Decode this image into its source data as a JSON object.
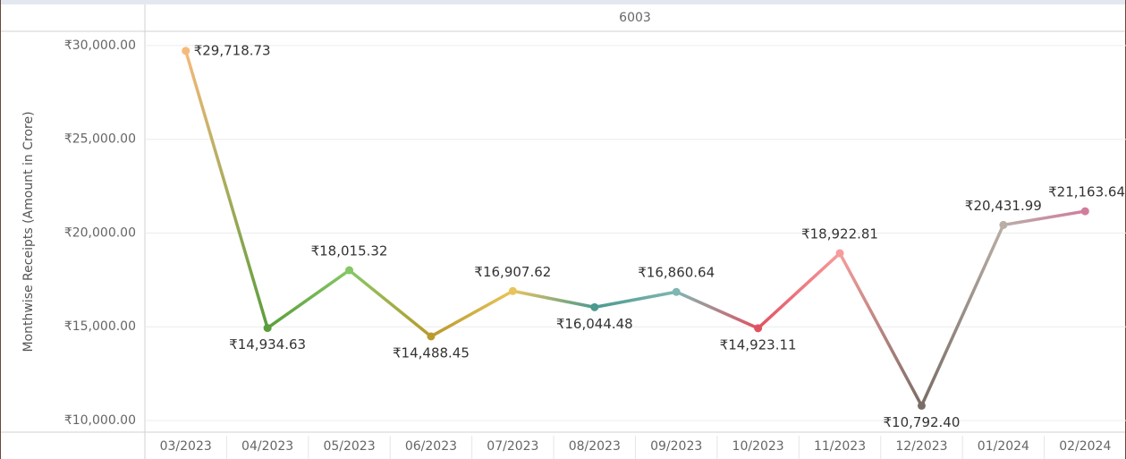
{
  "chart_data": {
    "type": "line",
    "panel_label": "6003",
    "y_axis_label": "Monthwise Receipts (Amount in Crore)",
    "categories": [
      "03/2023",
      "04/2023",
      "05/2023",
      "06/2023",
      "07/2023",
      "08/2023",
      "09/2023",
      "10/2023",
      "11/2023",
      "12/2023",
      "01/2024",
      "02/2024"
    ],
    "values": [
      29718.73,
      14934.63,
      18015.32,
      14488.45,
      16907.62,
      16044.48,
      16860.64,
      14923.11,
      18922.81,
      10792.4,
      20431.99,
      21163.64
    ],
    "value_labels": [
      "₹29,718.73",
      "₹14,934.63",
      "₹18,015.32",
      "₹14,488.45",
      "₹16,907.62",
      "₹16,044.48",
      "₹16,860.64",
      "₹14,923.11",
      "₹18,922.81",
      "₹10,792.40",
      "₹20,431.99",
      "₹21,163.64"
    ],
    "colors": [
      "#f6b97b",
      "#5a9e3c",
      "#86c765",
      "#b99a2d",
      "#e8c45c",
      "#4b9a8f",
      "#7fb7b1",
      "#e05262",
      "#f79c9c",
      "#7a6e66",
      "#b9aea7",
      "#d27c9c"
    ],
    "ylim": [
      9380,
      30760
    ],
    "yticks": [
      {
        "value": 10000,
        "label": "₹10,000.00"
      },
      {
        "value": 15000,
        "label": "₹15,000.00"
      },
      {
        "value": 20000,
        "label": "₹20,000.00"
      },
      {
        "value": 25000,
        "label": "₹25,000.00"
      },
      {
        "value": 30000,
        "label": "₹30,000.00"
      }
    ],
    "grid": true
  }
}
